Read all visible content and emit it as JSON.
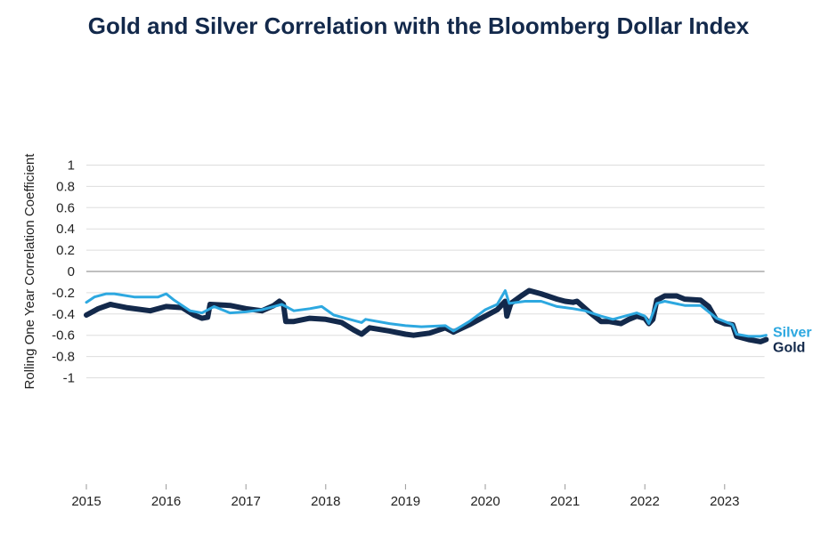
{
  "chart_data": {
    "type": "line",
    "title": "Gold and Silver Correlation with the Bloomberg Dollar Index",
    "xlabel": "",
    "ylabel": "Rolling One Year Correlation Coefficient",
    "xlim": [
      2015,
      2023.5
    ],
    "ylim": [
      -1,
      1
    ],
    "x_ticks": [
      "2015",
      "2016",
      "2017",
      "2018",
      "2019",
      "2020",
      "2021",
      "2022",
      "2023"
    ],
    "y_ticks": [
      "1",
      "0.8",
      "0.6",
      "0.4",
      "0.2",
      "0",
      "-0.2",
      "-0.4",
      "-0.6",
      "-0.8",
      "-1"
    ],
    "grid": "horizontal",
    "legend": "right end labels",
    "colors": {
      "Gold": "#13294b",
      "Silver": "#2da8e0"
    },
    "series": [
      {
        "name": "Silver",
        "points": [
          [
            2015.0,
            -0.29
          ],
          [
            2015.1,
            -0.24
          ],
          [
            2015.25,
            -0.21
          ],
          [
            2015.35,
            -0.21
          ],
          [
            2015.6,
            -0.24
          ],
          [
            2015.9,
            -0.24
          ],
          [
            2016.0,
            -0.21
          ],
          [
            2016.1,
            -0.27
          ],
          [
            2016.3,
            -0.37
          ],
          [
            2016.45,
            -0.39
          ],
          [
            2016.6,
            -0.33
          ],
          [
            2016.8,
            -0.39
          ],
          [
            2017.0,
            -0.38
          ],
          [
            2017.2,
            -0.36
          ],
          [
            2017.35,
            -0.33
          ],
          [
            2017.45,
            -0.31
          ],
          [
            2017.6,
            -0.37
          ],
          [
            2017.8,
            -0.35
          ],
          [
            2017.95,
            -0.33
          ],
          [
            2018.1,
            -0.41
          ],
          [
            2018.3,
            -0.45
          ],
          [
            2018.45,
            -0.48
          ],
          [
            2018.5,
            -0.45
          ],
          [
            2018.8,
            -0.49
          ],
          [
            2019.0,
            -0.51
          ],
          [
            2019.2,
            -0.52
          ],
          [
            2019.5,
            -0.51
          ],
          [
            2019.6,
            -0.56
          ],
          [
            2019.8,
            -0.47
          ],
          [
            2020.0,
            -0.36
          ],
          [
            2020.15,
            -0.31
          ],
          [
            2020.25,
            -0.18
          ],
          [
            2020.3,
            -0.3
          ],
          [
            2020.5,
            -0.28
          ],
          [
            2020.7,
            -0.28
          ],
          [
            2020.9,
            -0.33
          ],
          [
            2021.1,
            -0.35
          ],
          [
            2021.25,
            -0.37
          ],
          [
            2021.45,
            -0.42
          ],
          [
            2021.6,
            -0.45
          ],
          [
            2021.75,
            -0.42
          ],
          [
            2021.9,
            -0.39
          ],
          [
            2022.0,
            -0.42
          ],
          [
            2022.05,
            -0.49
          ],
          [
            2022.15,
            -0.3
          ],
          [
            2022.25,
            -0.28
          ],
          [
            2022.5,
            -0.32
          ],
          [
            2022.7,
            -0.32
          ],
          [
            2022.9,
            -0.44
          ],
          [
            2023.1,
            -0.5
          ],
          [
            2023.15,
            -0.59
          ],
          [
            2023.3,
            -0.61
          ],
          [
            2023.45,
            -0.61
          ],
          [
            2023.52,
            -0.6
          ]
        ]
      },
      {
        "name": "Gold",
        "points": [
          [
            2015.0,
            -0.41
          ],
          [
            2015.15,
            -0.35
          ],
          [
            2015.3,
            -0.31
          ],
          [
            2015.5,
            -0.34
          ],
          [
            2015.8,
            -0.37
          ],
          [
            2016.0,
            -0.33
          ],
          [
            2016.2,
            -0.34
          ],
          [
            2016.35,
            -0.41
          ],
          [
            2016.45,
            -0.44
          ],
          [
            2016.52,
            -0.43
          ],
          [
            2016.55,
            -0.31
          ],
          [
            2016.8,
            -0.32
          ],
          [
            2017.0,
            -0.35
          ],
          [
            2017.2,
            -0.37
          ],
          [
            2017.35,
            -0.32
          ],
          [
            2017.42,
            -0.28
          ],
          [
            2017.47,
            -0.31
          ],
          [
            2017.5,
            -0.47
          ],
          [
            2017.6,
            -0.47
          ],
          [
            2017.8,
            -0.44
          ],
          [
            2018.0,
            -0.45
          ],
          [
            2018.2,
            -0.48
          ],
          [
            2018.35,
            -0.55
          ],
          [
            2018.45,
            -0.59
          ],
          [
            2018.55,
            -0.53
          ],
          [
            2018.8,
            -0.56
          ],
          [
            2019.0,
            -0.59
          ],
          [
            2019.1,
            -0.6
          ],
          [
            2019.3,
            -0.58
          ],
          [
            2019.5,
            -0.53
          ],
          [
            2019.6,
            -0.57
          ],
          [
            2019.8,
            -0.5
          ],
          [
            2020.0,
            -0.42
          ],
          [
            2020.15,
            -0.36
          ],
          [
            2020.25,
            -0.28
          ],
          [
            2020.27,
            -0.42
          ],
          [
            2020.32,
            -0.3
          ],
          [
            2020.45,
            -0.23
          ],
          [
            2020.55,
            -0.18
          ],
          [
            2020.7,
            -0.21
          ],
          [
            2020.9,
            -0.26
          ],
          [
            2021.0,
            -0.28
          ],
          [
            2021.1,
            -0.29
          ],
          [
            2021.15,
            -0.28
          ],
          [
            2021.3,
            -0.38
          ],
          [
            2021.45,
            -0.47
          ],
          [
            2021.55,
            -0.47
          ],
          [
            2021.7,
            -0.49
          ],
          [
            2021.8,
            -0.45
          ],
          [
            2021.9,
            -0.42
          ],
          [
            2022.0,
            -0.44
          ],
          [
            2022.05,
            -0.49
          ],
          [
            2022.1,
            -0.45
          ],
          [
            2022.15,
            -0.27
          ],
          [
            2022.25,
            -0.23
          ],
          [
            2022.4,
            -0.23
          ],
          [
            2022.5,
            -0.26
          ],
          [
            2022.7,
            -0.27
          ],
          [
            2022.8,
            -0.33
          ],
          [
            2022.9,
            -0.46
          ],
          [
            2023.0,
            -0.49
          ],
          [
            2023.1,
            -0.5
          ],
          [
            2023.15,
            -0.61
          ],
          [
            2023.3,
            -0.64
          ],
          [
            2023.45,
            -0.66
          ],
          [
            2023.52,
            -0.64
          ]
        ]
      }
    ]
  }
}
